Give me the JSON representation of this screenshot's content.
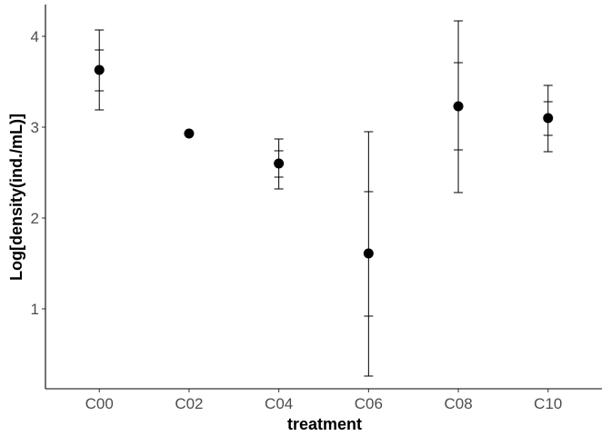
{
  "chart_data": {
    "type": "scatter",
    "title": "",
    "xlabel": "treatment",
    "ylabel": "Log[density(ind./mL)]",
    "categories": [
      "C00",
      "C02",
      "C04",
      "C06",
      "C08",
      "C10"
    ],
    "series": [
      {
        "mean": [
          3.63,
          2.93,
          2.6,
          1.61,
          3.23,
          3.1
        ],
        "inner_interval": [
          [
            3.4,
            3.85
          ],
          [
            2.93,
            2.93
          ],
          [
            2.45,
            2.74
          ],
          [
            0.92,
            2.29
          ],
          [
            2.75,
            3.71
          ],
          [
            2.91,
            3.28
          ]
        ],
        "outer_interval": [
          [
            3.19,
            4.07
          ],
          [
            2.93,
            2.93
          ],
          [
            2.32,
            2.87
          ],
          [
            0.26,
            2.95
          ],
          [
            2.28,
            4.17
          ],
          [
            2.73,
            3.46
          ]
        ]
      }
    ],
    "yticks": [
      1,
      2,
      3,
      4
    ],
    "ylim": [
      0.12,
      4.35
    ],
    "grid": false,
    "legend": "none",
    "point_color": "#000000"
  }
}
